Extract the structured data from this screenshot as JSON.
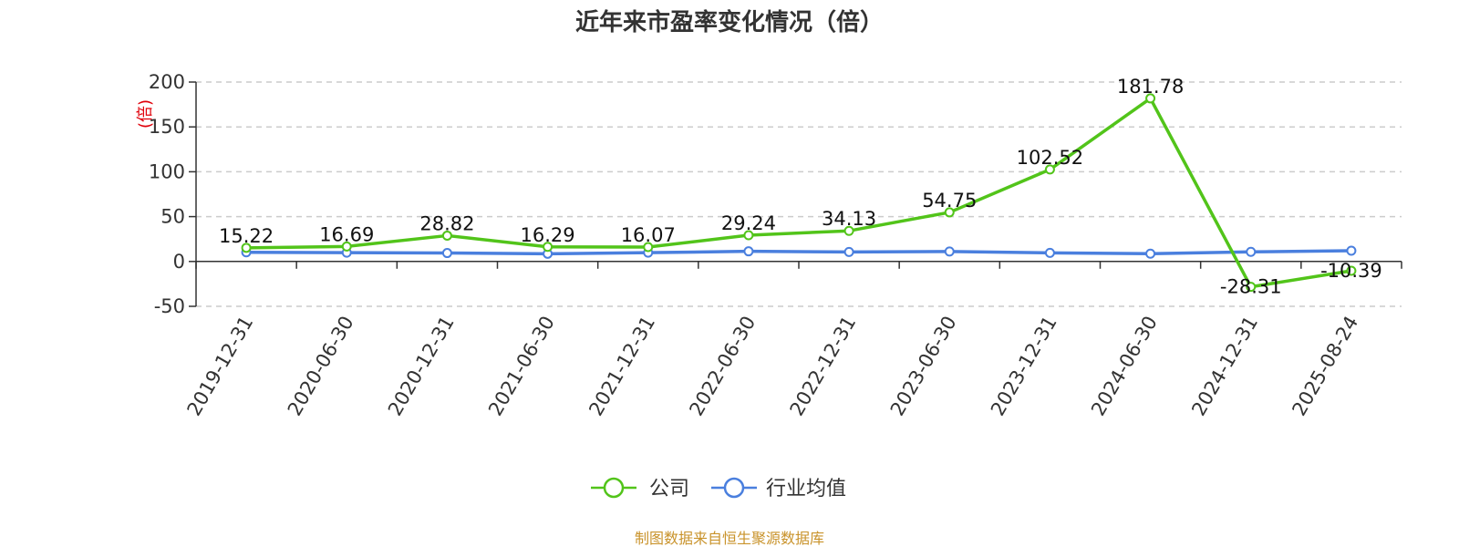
{
  "chart_data": {
    "type": "line",
    "title": "近年来市盈率变化情况（倍）",
    "ylabel": "(倍)",
    "xlabel": "",
    "categories": [
      "2019-12-31",
      "2020-06-30",
      "2020-12-31",
      "2021-06-30",
      "2021-12-31",
      "2022-06-30",
      "2022-12-31",
      "2023-06-30",
      "2023-12-31",
      "2024-06-30",
      "2024-12-31",
      "2025-08-24"
    ],
    "ylim": [
      -50,
      200
    ],
    "yticks": [
      200,
      150,
      100,
      50,
      0,
      -50
    ],
    "ytick_labels": [
      "200",
      "150",
      "100",
      "50",
      "0",
      "-50"
    ],
    "grid": true,
    "legend_position": "bottom-center",
    "series": [
      {
        "name": "公司",
        "color": "#52c41a",
        "values": [
          15.22,
          16.69,
          28.82,
          16.29,
          16.07,
          29.24,
          34.13,
          54.75,
          102.52,
          181.78,
          -28.31,
          -10.39
        ],
        "labels": [
          "15.22",
          "16.69",
          "28.82",
          "16.29",
          "16.07",
          "29.24",
          "34.13",
          "54.75",
          "102.52",
          "181.78",
          "-28.31",
          "-10.39"
        ]
      },
      {
        "name": "行业均值",
        "color": "#4a7fde",
        "values": [
          10.2,
          9.8,
          9.4,
          8.6,
          9.8,
          11.3,
          10.6,
          11.1,
          9.6,
          8.7,
          10.7,
          12.0
        ]
      }
    ]
  },
  "source_text": "制图数据来自恒生聚源数据库"
}
